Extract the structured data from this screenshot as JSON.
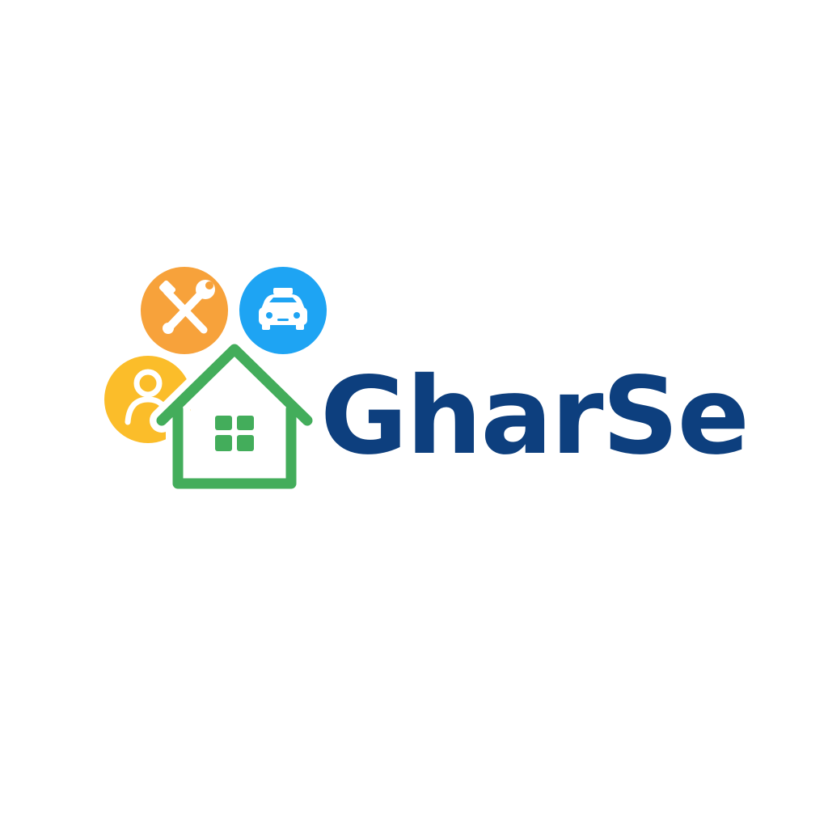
{
  "brand": {
    "name": "GharSe"
  },
  "icons": {
    "tools": "wrench-screwdriver-icon",
    "taxi": "taxi-icon",
    "person": "person-icon",
    "home": "house-icon"
  },
  "colors": {
    "wordmark": "#0d3f7e",
    "tools_circle": "#f7a23b",
    "taxi_circle": "#1ea4f3",
    "person_circle": "#fbbd2a",
    "house": "#43ad5b",
    "icon_fg": "#ffffff",
    "background": "#ffffff"
  }
}
